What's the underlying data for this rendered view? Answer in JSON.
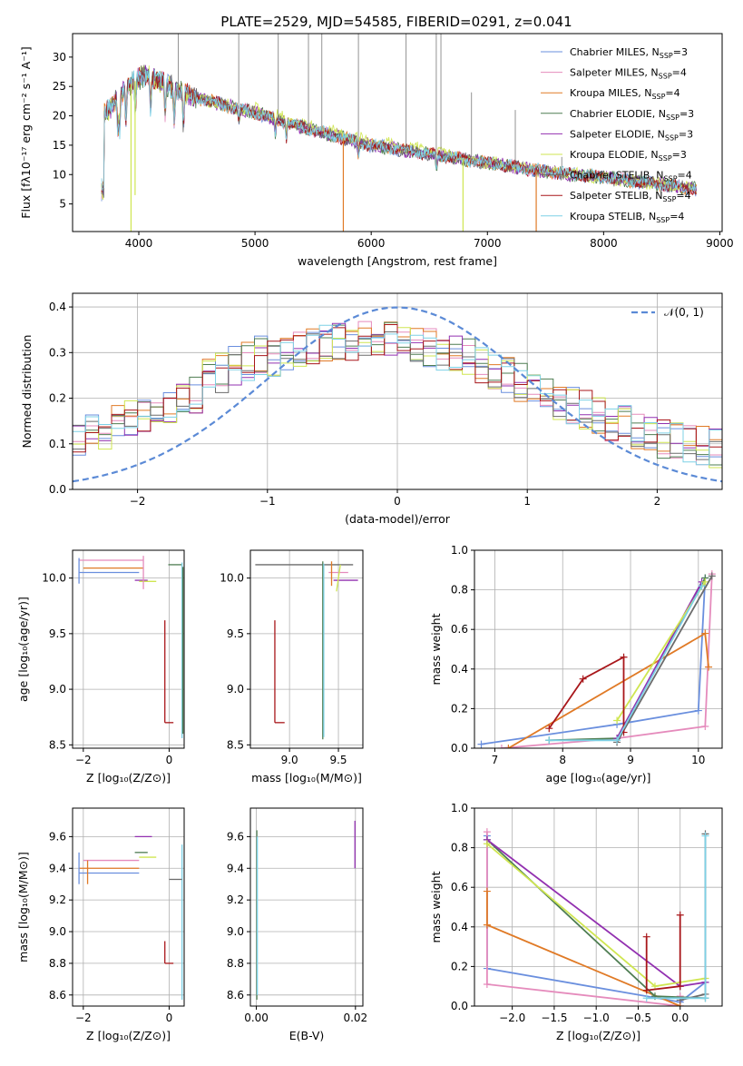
{
  "figure_title": "PLATE=2529, MJD=54585, FIBERID=0291, z=0.041",
  "series_colors": {
    "Chabrier MILES": "#6a8fde",
    "Salpeter MILES": "#e58bbc",
    "Kroupa MILES": "#e07a26",
    "Chabrier ELODIE": "#4e7d52",
    "Salpeter ELODIE": "#9230b0",
    "Kroupa ELODIE": "#cfe650",
    "Chabrier STELIB": "#6b6b6b",
    "Salpeter STELIB": "#a8161a",
    "Kroupa STELIB": "#7dd1e6"
  },
  "chart_data": [
    {
      "id": "spectrum",
      "type": "line",
      "title": "PLATE=2529, MJD=54585, FIBERID=0291, z=0.041",
      "xlabel": "wavelength [Angstrom, rest frame]",
      "ylabel": "Flux [fλ10⁻¹⁷ erg cm⁻² s⁻¹ A⁻¹]",
      "xlim": [
        3430,
        9020
      ],
      "ylim": [
        0.3,
        34
      ],
      "xticks": [
        4000,
        5000,
        6000,
        7000,
        8000,
        9000
      ],
      "yticks": [
        5,
        10,
        15,
        20,
        25,
        30
      ],
      "legend_position": "top-right",
      "legend": [
        {
          "label": "Chabrier MILES, N",
          "sub": "SSP",
          "suffix": "=3",
          "color": "#6a8fde"
        },
        {
          "label": "Salpeter MILES, N",
          "sub": "SSP",
          "suffix": "=4",
          "color": "#e58bbc"
        },
        {
          "label": "Kroupa MILES, N",
          "sub": "SSP",
          "suffix": "=4",
          "color": "#e07a26"
        },
        {
          "label": "Chabrier ELODIE, N",
          "sub": "SSP",
          "suffix": "=3",
          "color": "#4e7d52"
        },
        {
          "label": "Salpeter ELODIE, N",
          "sub": "SSP",
          "suffix": "=3",
          "color": "#9230b0"
        },
        {
          "label": "Kroupa ELODIE, N",
          "sub": "SSP",
          "suffix": "=3",
          "color": "#cfe650"
        },
        {
          "label": "Chabrier STELIB, N",
          "sub": "SSP",
          "suffix": "=4",
          "color": "#6b6b6b"
        },
        {
          "label": "Salpeter STELIB, N",
          "sub": "SSP",
          "suffix": "=4",
          "color": "#a8161a"
        },
        {
          "label": "Kroupa STELIB, N",
          "sub": "SSP",
          "suffix": "=4",
          "color": "#7dd1e6"
        }
      ],
      "continuum": {
        "x": [
          3700,
          3900,
          4050,
          4500,
          5000,
          5500,
          6000,
          6500,
          7000,
          7500,
          8000,
          8500,
          8800
        ],
        "y": [
          20,
          25,
          27,
          23,
          20.5,
          17.5,
          15,
          13.5,
          12,
          10.5,
          9.5,
          8.3,
          7.5
        ]
      },
      "dips": [
        {
          "x": 3933,
          "y": 0.3
        },
        {
          "x": 3968,
          "y": 6.5
        },
        {
          "x": 5760,
          "y": 0.3
        },
        {
          "x": 6790,
          "y": 0.3
        },
        {
          "x": 7420,
          "y": 0.3
        }
      ],
      "spikes": [
        {
          "x": 4340,
          "y": 34
        },
        {
          "x": 4860,
          "y": 34
        },
        {
          "x": 5200,
          "y": 34
        },
        {
          "x": 5460,
          "y": 34
        },
        {
          "x": 5575,
          "y": 34
        },
        {
          "x": 5890,
          "y": 34
        },
        {
          "x": 6300,
          "y": 34
        },
        {
          "x": 6560,
          "y": 34
        },
        {
          "x": 6600,
          "y": 34
        },
        {
          "x": 6863,
          "y": 24
        },
        {
          "x": 7240,
          "y": 21
        },
        {
          "x": 7640,
          "y": 13
        }
      ]
    },
    {
      "id": "residuals",
      "type": "line",
      "xlabel": "(data-model)/error",
      "ylabel": "Normed distribution",
      "xlim": [
        -2.5,
        2.5
      ],
      "ylim": [
        0,
        0.43
      ],
      "xticks": [
        -2,
        -1,
        0,
        1,
        2
      ],
      "yticks": [
        0.0,
        0.1,
        0.2,
        0.3,
        0.4
      ],
      "legend_position": "top-right",
      "legend": [
        {
          "label": "𝒩(0, 1)",
          "color": "#5b8ad6",
          "style": "dashed"
        }
      ],
      "gaussian": {
        "mean": 0,
        "sigma": 1
      }
    },
    {
      "id": "age-vs-Z",
      "type": "scatter",
      "xlabel": "Z [log₁₀(Z/Z⊙)]",
      "ylabel": "age  [log₁₀(age/yr)]",
      "xlim": [
        -2.25,
        0.35
      ],
      "ylim": [
        8.47,
        10.25
      ],
      "xticks": [
        -2,
        0
      ],
      "yticks": [
        8.5,
        9.0,
        9.5,
        10.0
      ],
      "segments": [
        {
          "c": "#6a8fde",
          "x": [
            -2.1,
            -0.7
          ],
          "y": [
            10.05,
            10.05
          ]
        },
        {
          "c": "#e58bbc",
          "x": [
            -2.1,
            -0.6
          ],
          "y": [
            10.16,
            10.16
          ]
        },
        {
          "c": "#e07a26",
          "x": [
            -2.0,
            -0.6
          ],
          "y": [
            10.09,
            10.09
          ]
        },
        {
          "c": "#9230b0",
          "x": [
            -0.8,
            -0.5
          ],
          "y": [
            9.98,
            9.98
          ]
        },
        {
          "c": "#cfe650",
          "x": [
            -0.7,
            -0.3
          ],
          "y": [
            9.97,
            9.97
          ]
        },
        {
          "c": "#4e7d52",
          "x": [
            -0.02,
            0.3
          ],
          "y": [
            10.12,
            10.12
          ]
        },
        {
          "c": "#a8161a",
          "x": [
            -0.1,
            -0.1
          ],
          "y": [
            8.7,
            9.62
          ]
        },
        {
          "c": "#a8161a",
          "x": [
            -0.1,
            0.1
          ],
          "y": [
            8.7,
            8.7
          ]
        },
        {
          "c": "#7dd1e6",
          "x": [
            0.3,
            0.3
          ],
          "y": [
            8.56,
            10.14
          ]
        },
        {
          "c": "#4e7d52",
          "x": [
            0.32,
            0.32
          ],
          "y": [
            8.6,
            10.1
          ]
        },
        {
          "c": "#6a8fde",
          "x": [
            -2.1,
            -2.1
          ],
          "y": [
            9.95,
            10.18
          ]
        },
        {
          "c": "#e58bbc",
          "x": [
            -0.6,
            -0.6
          ],
          "y": [
            9.9,
            10.2
          ]
        }
      ]
    },
    {
      "id": "age-vs-mass",
      "type": "scatter",
      "xlabel": "mass [log₁₀(M/M⊙)]",
      "xlim": [
        8.6,
        9.75
      ],
      "ylim": [
        8.47,
        10.25
      ],
      "xticks": [
        9.0,
        9.5
      ],
      "yticks": [
        8.5,
        9.0,
        9.5,
        10.0
      ],
      "segments": [
        {
          "c": "#6b6b6b",
          "x": [
            8.65,
            9.65
          ],
          "y": [
            10.12,
            10.12
          ]
        },
        {
          "c": "#a8161a",
          "x": [
            8.85,
            8.85
          ],
          "y": [
            8.7,
            9.62
          ]
        },
        {
          "c": "#a8161a",
          "x": [
            8.85,
            8.95
          ],
          "y": [
            8.7,
            8.7
          ]
        },
        {
          "c": "#4e7d52",
          "x": [
            9.34,
            9.34
          ],
          "y": [
            8.55,
            10.15
          ]
        },
        {
          "c": "#7dd1e6",
          "x": [
            9.35,
            9.35
          ],
          "y": [
            8.57,
            10.13
          ]
        },
        {
          "c": "#e58bbc",
          "x": [
            9.4,
            9.6
          ],
          "y": [
            10.05,
            10.05
          ]
        },
        {
          "c": "#9230b0",
          "x": [
            9.45,
            9.7
          ],
          "y": [
            9.98,
            9.98
          ]
        },
        {
          "c": "#cfe650",
          "x": [
            9.48,
            9.52
          ],
          "y": [
            9.88,
            10.12
          ]
        },
        {
          "c": "#e07a26",
          "x": [
            9.43,
            9.43
          ],
          "y": [
            9.93,
            10.15
          ]
        }
      ]
    },
    {
      "id": "weight-vs-age",
      "type": "line",
      "xlabel": "age  [log₁₀(age/yr)]",
      "ylabel": "mass weight",
      "xlim": [
        6.7,
        10.35
      ],
      "ylim": [
        0,
        1.0
      ],
      "xticks": [
        7,
        8,
        9,
        10
      ],
      "yticks": [
        0.0,
        0.2,
        0.4,
        0.6,
        0.8,
        1.0
      ],
      "series": [
        {
          "name": "Chabrier MILES",
          "c": "#6a8fde",
          "x": [
            6.8,
            8.8,
            10.0,
            10.1
          ],
          "y": [
            0.02,
            0.12,
            0.19,
            0.86
          ]
        },
        {
          "name": "Salpeter MILES",
          "c": "#e58bbc",
          "x": [
            7.1,
            8.8,
            10.1,
            10.2
          ],
          "y": [
            0.0,
            0.05,
            0.11,
            0.88
          ]
        },
        {
          "name": "Kroupa MILES",
          "c": "#e07a26",
          "x": [
            7.2,
            10.1,
            10.15
          ],
          "y": [
            0.0,
            0.58,
            0.41
          ]
        },
        {
          "name": "Chabrier ELODIE",
          "c": "#4e7d52",
          "x": [
            7.8,
            8.8,
            10.1
          ],
          "y": [
            0.04,
            0.05,
            0.86
          ]
        },
        {
          "name": "Salpeter ELODIE",
          "c": "#9230b0",
          "x": [
            8.8,
            10.05
          ],
          "y": [
            0.05,
            0.84
          ]
        },
        {
          "name": "Kroupa ELODIE",
          "c": "#cfe650",
          "x": [
            8.8,
            10.1
          ],
          "y": [
            0.14,
            0.84
          ]
        },
        {
          "name": "Chabrier STELIB",
          "c": "#6b6b6b",
          "x": [
            8.8,
            10.2
          ],
          "y": [
            0.03,
            0.87
          ]
        },
        {
          "name": "Salpeter STELIB",
          "c": "#a8161a",
          "x": [
            7.8,
            8.3,
            8.9,
            8.9
          ],
          "y": [
            0.1,
            0.35,
            0.46,
            0.08
          ]
        },
        {
          "name": "Kroupa STELIB",
          "c": "#7dd1e6",
          "x": [
            7.8,
            8.8,
            10.05
          ],
          "y": [
            0.04,
            0.04,
            0.82
          ]
        }
      ]
    },
    {
      "id": "mass-vs-Z",
      "type": "scatter",
      "xlabel": "Z [log₁₀(Z/Z⊙)]",
      "ylabel": "mass [log₁₀(M/M⊙)]",
      "xlim": [
        -2.25,
        0.35
      ],
      "ylim": [
        8.53,
        9.78
      ],
      "xticks": [
        -2,
        0
      ],
      "yticks": [
        8.6,
        8.8,
        9.0,
        9.2,
        9.4,
        9.6
      ],
      "segments": [
        {
          "c": "#6a8fde",
          "x": [
            -2.1,
            -0.7
          ],
          "y": [
            9.37,
            9.37
          ]
        },
        {
          "c": "#e58bbc",
          "x": [
            -2.0,
            -0.7
          ],
          "y": [
            9.45,
            9.45
          ]
        },
        {
          "c": "#e07a26",
          "x": [
            -2.1,
            -0.7
          ],
          "y": [
            9.4,
            9.4
          ]
        },
        {
          "c": "#4e7d52",
          "x": [
            -0.8,
            -0.5
          ],
          "y": [
            9.5,
            9.5
          ]
        },
        {
          "c": "#9230b0",
          "x": [
            -0.8,
            -0.4
          ],
          "y": [
            9.6,
            9.6
          ]
        },
        {
          "c": "#cfe650",
          "x": [
            -0.7,
            -0.3
          ],
          "y": [
            9.47,
            9.47
          ]
        },
        {
          "c": "#a8161a",
          "x": [
            -0.1,
            -0.1
          ],
          "y": [
            8.8,
            8.94
          ]
        },
        {
          "c": "#a8161a",
          "x": [
            -0.1,
            0.1
          ],
          "y": [
            8.8,
            8.8
          ]
        },
        {
          "c": "#7dd1e6",
          "x": [
            0.3,
            0.3
          ],
          "y": [
            8.57,
            9.55
          ]
        },
        {
          "c": "#6b6b6b",
          "x": [
            0.0,
            0.3
          ],
          "y": [
            9.33,
            9.33
          ]
        },
        {
          "c": "#6a8fde",
          "x": [
            -2.1,
            -2.1
          ],
          "y": [
            9.3,
            9.5
          ]
        },
        {
          "c": "#e07a26",
          "x": [
            -1.9,
            -1.9
          ],
          "y": [
            9.3,
            9.45
          ]
        }
      ]
    },
    {
      "id": "mass-vs-ebv",
      "type": "scatter",
      "xlabel": "E(B-V)",
      "xlim": [
        -0.0012,
        0.0215
      ],
      "ylim": [
        8.53,
        9.78
      ],
      "xticks": [
        0.0,
        0.02
      ],
      "yticks": [
        8.6,
        8.8,
        9.0,
        9.2,
        9.4,
        9.6
      ],
      "segments": [
        {
          "c": "#4e7d52",
          "x": [
            0.0001,
            0.0001
          ],
          "y": [
            8.57,
            9.64
          ]
        },
        {
          "c": "#7dd1e6",
          "x": [
            0.0002,
            0.0002
          ],
          "y": [
            8.6,
            9.6
          ]
        },
        {
          "c": "#9230b0",
          "x": [
            0.0199,
            0.0199
          ],
          "y": [
            9.4,
            9.7
          ]
        }
      ]
    },
    {
      "id": "weight-vs-Z",
      "type": "line",
      "xlabel": "Z [log₁₀(Z/Z⊙)]",
      "ylabel": "mass weight",
      "xlim": [
        -2.45,
        0.5
      ],
      "ylim": [
        0,
        1.0
      ],
      "xticks": [
        -2.0,
        -1.5,
        -1.0,
        -0.5,
        0.0
      ],
      "yticks": [
        0.0,
        0.2,
        0.4,
        0.6,
        0.8,
        1.0
      ],
      "series": [
        {
          "name": "Chabrier MILES",
          "c": "#6a8fde",
          "x": [
            -2.3,
            -2.3,
            0.0,
            0.3
          ],
          "y": [
            0.86,
            0.19,
            0.02,
            0.12
          ]
        },
        {
          "name": "Salpeter MILES",
          "c": "#e58bbc",
          "x": [
            -2.3,
            -2.3,
            0.0,
            0.0
          ],
          "y": [
            0.88,
            0.11,
            0.0,
            0.05
          ]
        },
        {
          "name": "Kroupa MILES",
          "c": "#e07a26",
          "x": [
            -2.3,
            -2.3,
            0.0
          ],
          "y": [
            0.58,
            0.41,
            0.0
          ]
        },
        {
          "name": "Chabrier ELODIE",
          "c": "#4e7d52",
          "x": [
            -2.3,
            -0.3,
            0.3
          ],
          "y": [
            0.84,
            0.05,
            0.04
          ]
        },
        {
          "name": "Salpeter ELODIE",
          "c": "#9230b0",
          "x": [
            -2.3,
            0.0,
            0.3
          ],
          "y": [
            0.84,
            0.1,
            0.12
          ]
        },
        {
          "name": "Kroupa ELODIE",
          "c": "#cfe650",
          "x": [
            -2.3,
            -0.3,
            0.3
          ],
          "y": [
            0.82,
            0.1,
            0.14
          ]
        },
        {
          "name": "Chabrier STELIB",
          "c": "#6b6b6b",
          "x": [
            0.3,
            0.3,
            0.0
          ],
          "y": [
            0.87,
            0.06,
            0.03
          ]
        },
        {
          "name": "Salpeter STELIB",
          "c": "#a8161a",
          "x": [
            -0.4,
            -0.4,
            0.0,
            0.0
          ],
          "y": [
            0.35,
            0.08,
            0.1,
            0.46
          ]
        },
        {
          "name": "Kroupa STELIB",
          "c": "#7dd1e6",
          "x": [
            0.3,
            0.3,
            -0.4
          ],
          "y": [
            0.86,
            0.04,
            0.04
          ]
        }
      ]
    }
  ]
}
